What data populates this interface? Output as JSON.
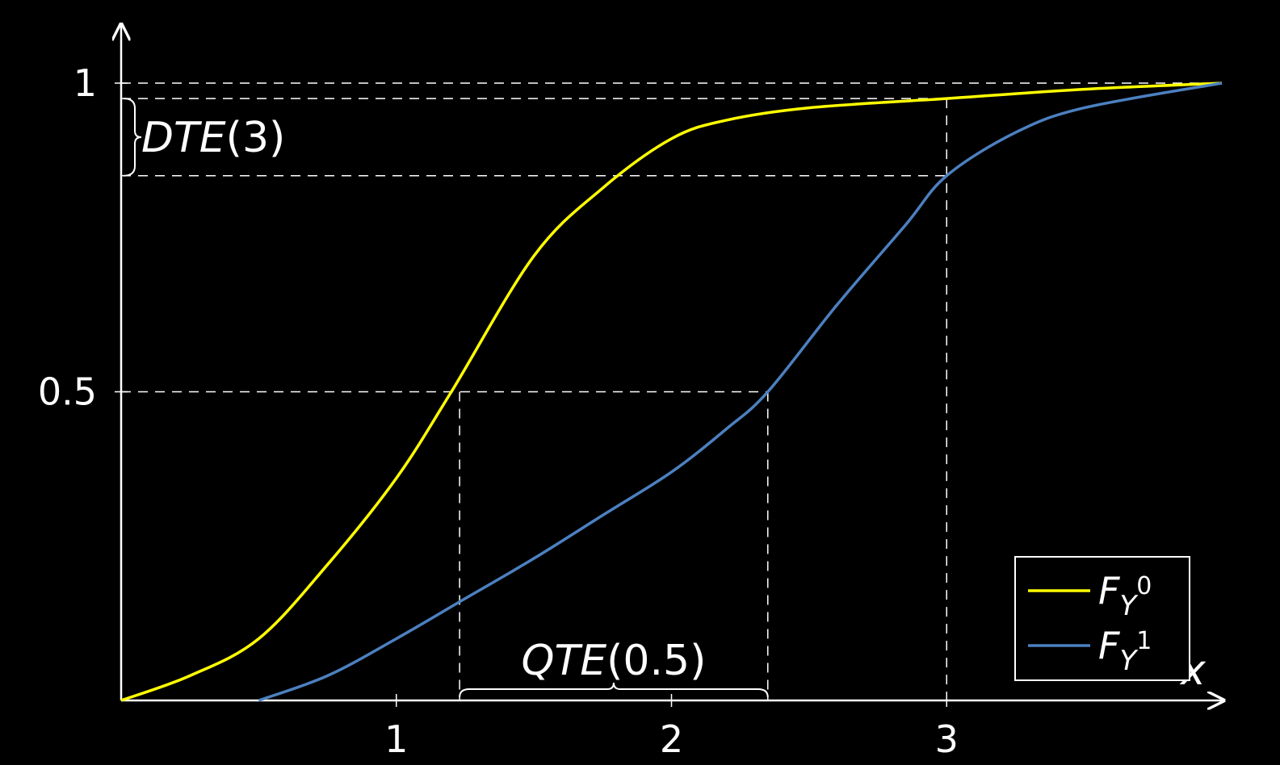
{
  "chart_data": {
    "type": "line",
    "xlabel": "x",
    "ylabel": "",
    "xlim": [
      0,
      4
    ],
    "ylim": [
      0,
      1
    ],
    "x_ticks": [
      {
        "value": 1,
        "label": "1"
      },
      {
        "value": 2,
        "label": "2"
      },
      {
        "value": 3,
        "label": "3"
      }
    ],
    "y_ticks": [
      {
        "value": 0.5,
        "label": "0.5"
      },
      {
        "value": 1,
        "label": "1"
      }
    ],
    "grid": false,
    "legend_position": "bottom-right",
    "series": [
      {
        "name": "F_{Y^0}",
        "name_main": "F",
        "name_sub": "Y",
        "name_sup": "0",
        "color": "#ffff00",
        "points": [
          [
            0,
            0
          ],
          [
            0.25,
            0.04
          ],
          [
            0.5,
            0.1
          ],
          [
            0.75,
            0.22
          ],
          [
            1.0,
            0.36
          ],
          [
            1.2,
            0.5
          ],
          [
            1.5,
            0.72
          ],
          [
            1.75,
            0.83
          ],
          [
            2.0,
            0.91
          ],
          [
            2.2,
            0.94
          ],
          [
            2.5,
            0.96
          ],
          [
            3.0,
            0.975
          ],
          [
            3.5,
            0.99
          ],
          [
            4.0,
            1.0
          ]
        ]
      },
      {
        "name": "F_{Y^1}",
        "name_main": "F",
        "name_sub": "Y",
        "name_sup": "1",
        "color": "#4c80c0",
        "points": [
          [
            0.5,
            0
          ],
          [
            0.75,
            0.04
          ],
          [
            1.0,
            0.1
          ],
          [
            1.25,
            0.165
          ],
          [
            1.5,
            0.23
          ],
          [
            1.75,
            0.3
          ],
          [
            2.0,
            0.37
          ],
          [
            2.2,
            0.44
          ],
          [
            2.35,
            0.5
          ],
          [
            2.6,
            0.64
          ],
          [
            2.85,
            0.77
          ],
          [
            3.0,
            0.85
          ],
          [
            3.25,
            0.92
          ],
          [
            3.5,
            0.96
          ],
          [
            4.0,
            1.0
          ]
        ]
      }
    ],
    "annotations": {
      "dte": {
        "label_main": "DTE",
        "label_arg": "(3)",
        "x": 3,
        "y_top": 0.975,
        "y_bottom": 0.85
      },
      "qte": {
        "label_main": "QTE",
        "label_arg": "(0.5)",
        "q": 0.5,
        "x_left": 1.23,
        "x_right": 2.35
      }
    }
  }
}
